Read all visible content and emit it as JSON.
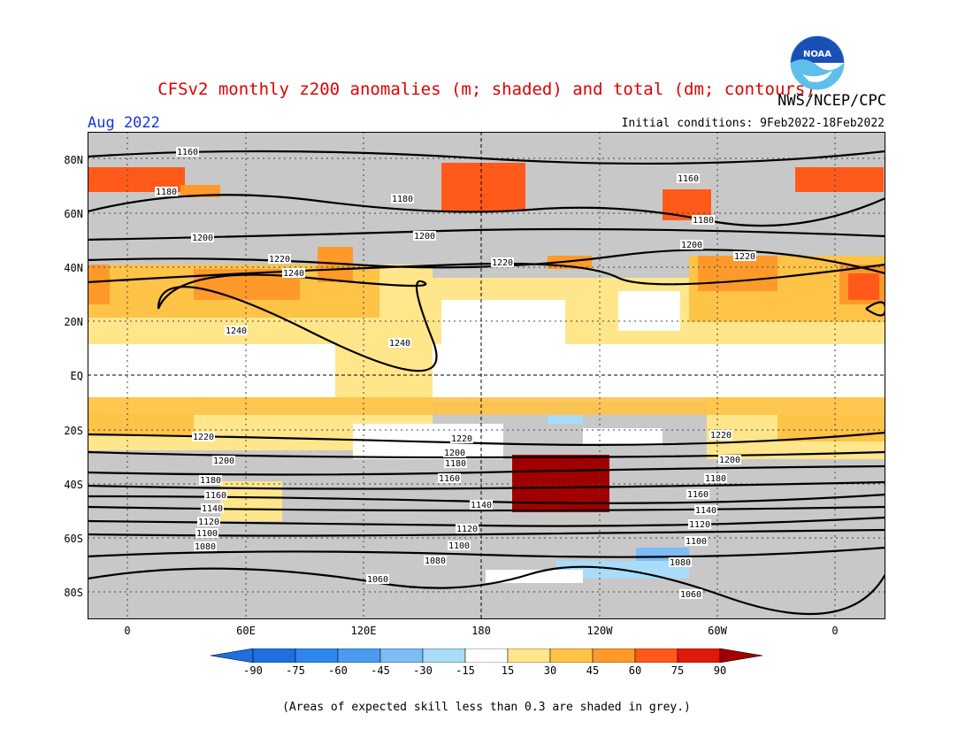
{
  "header": {
    "title": "CFSv2 monthly z200 anomalies (m; shaded) and total (dm; contours)",
    "agency": "NWS/NCEP/CPC",
    "month": "Aug 2022",
    "initial_conditions": "Initial conditions: 9Feb2022-18Feb2022"
  },
  "logo": {
    "text": "NOAA",
    "icon": "noaa-logo"
  },
  "map": {
    "lat_labels": [
      "80N",
      "60N",
      "40N",
      "20N",
      "EQ",
      "20S",
      "40S",
      "60S",
      "80S"
    ],
    "lon_labels": [
      "0",
      "60E",
      "120E",
      "180",
      "120W",
      "60W",
      "0"
    ],
    "contour_labels": [
      "1160",
      "1180",
      "1200",
      "1220",
      "1240",
      "1060",
      "1080",
      "1100",
      "1120",
      "1140"
    ]
  },
  "colorbar": {
    "labels": [
      "-90",
      "-75",
      "-60",
      "-45",
      "-30",
      "-15",
      "15",
      "30",
      "45",
      "60",
      "75",
      "90"
    ],
    "colors": [
      "#1e6fe0",
      "#2f86ec",
      "#4a9af0",
      "#7dbcf5",
      "#a8dcf8",
      "#c8f0f8",
      "#ffffff",
      "#ffe68a",
      "#ffc348",
      "#ff9a2a",
      "#ff5a1a",
      "#e01a0a",
      "#a00000"
    ]
  },
  "colors": {
    "skill_grey": "#c8c8c8",
    "contour": "#000000"
  },
  "note": "(Areas of expected skill less than 0.3 are shaded in grey.)"
}
